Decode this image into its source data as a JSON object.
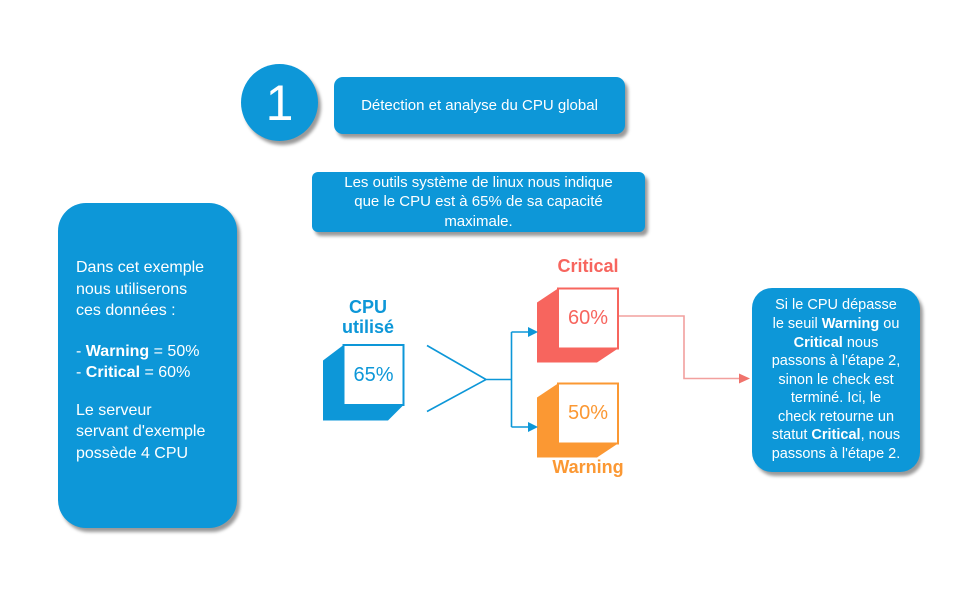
{
  "palette": {
    "blue": "#0D97D8",
    "red": "#F7655E",
    "orange": "#FB9833",
    "pink_line": "#F2A09E",
    "pink_arrow": "#F0736C",
    "white": "#FFFFFF"
  },
  "step": {
    "number": "1",
    "title": "Détection et analyse du CPU global"
  },
  "info_box": {
    "lines": [
      "Les outils système de linux nous indique",
      "que le CPU est à 65% de sa capacité",
      "maximale."
    ]
  },
  "example_box": {
    "intro_lines": [
      "Dans cet exemple",
      "nous utiliserons",
      "ces données :"
    ],
    "warning_line": [
      {
        "t": "- "
      },
      {
        "t": "Warning",
        "b": true
      },
      {
        "t": " = 50%"
      }
    ],
    "critical_line": [
      {
        "t": "- "
      },
      {
        "t": "Critical",
        "b": true
      },
      {
        "t": " = 60%"
      }
    ],
    "outro_lines": [
      "Le serveur",
      "servant d'exemple",
      "possède 4 CPU"
    ]
  },
  "flow": {
    "cpu_label_line1": "CPU",
    "cpu_label_line2": "utilisé",
    "cpu_value": "65%",
    "critical_label": "Critical",
    "critical_value": "60%",
    "warning_label": "Warning",
    "warning_value": "50%"
  },
  "conclusion_box": {
    "lines": [
      [
        {
          "t": "Si le CPU dépasse"
        }
      ],
      [
        {
          "t": "le seuil "
        },
        {
          "t": "Warning",
          "b": true
        },
        {
          "t": " ou"
        }
      ],
      [
        {
          "t": "Critical",
          "b": true
        },
        {
          "t": " nous"
        }
      ],
      [
        {
          "t": "passons à l'étape 2,"
        }
      ],
      [
        {
          "t": "sinon le check est"
        }
      ],
      [
        {
          "t": "terminé. Ici, le"
        }
      ],
      [
        {
          "t": "check retourne un"
        }
      ],
      [
        {
          "t": "statut "
        },
        {
          "t": "Critical",
          "b": true
        },
        {
          "t": ", nous"
        }
      ],
      [
        {
          "t": "passons à l'étape 2."
        }
      ]
    ]
  }
}
